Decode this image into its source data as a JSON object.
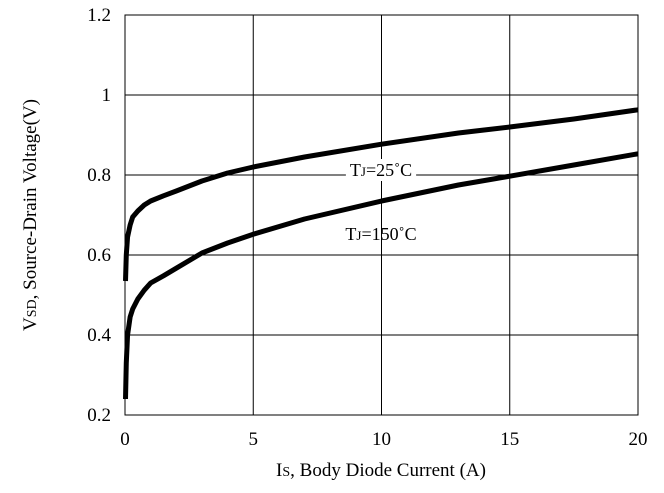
{
  "chart_data": {
    "type": "line",
    "xlabel_parts": {
      "main": "I",
      "sub": "S",
      "rest": ", Body Diode Current (A)"
    },
    "ylabel_parts": {
      "main": "V",
      "sub": "SD",
      "rest": ", Source-Drain Voltage(V)"
    },
    "xlim": [
      0,
      20
    ],
    "ylim": [
      0.2,
      1.2
    ],
    "x_ticks": [
      "0",
      "5",
      "10",
      "15",
      "20"
    ],
    "y_ticks": [
      "0.2",
      "0.4",
      "0.6",
      "0.8",
      "1",
      "1.2"
    ],
    "grid": true,
    "series": [
      {
        "name_parts": {
          "main": "T",
          "sub": "J",
          "rest": "=25˚C"
        },
        "x": [
          0.02,
          0.05,
          0.1,
          0.2,
          0.3,
          0.5,
          0.75,
          1,
          1.5,
          2,
          3,
          4,
          5,
          7,
          10,
          13,
          15,
          17.5,
          20
        ],
        "y": [
          0.535,
          0.6,
          0.645,
          0.675,
          0.695,
          0.71,
          0.725,
          0.735,
          0.748,
          0.76,
          0.785,
          0.805,
          0.82,
          0.845,
          0.877,
          0.905,
          0.92,
          0.94,
          0.963
        ]
      },
      {
        "name_parts": {
          "main": "T",
          "sub": "J",
          "rest": "=150˚C"
        },
        "x": [
          0.02,
          0.05,
          0.1,
          0.2,
          0.3,
          0.5,
          0.75,
          1,
          1.5,
          2,
          3,
          4,
          5,
          7,
          10,
          13,
          15,
          17.5,
          20
        ],
        "y": [
          0.24,
          0.33,
          0.4,
          0.445,
          0.465,
          0.49,
          0.512,
          0.53,
          0.548,
          0.567,
          0.605,
          0.63,
          0.652,
          0.69,
          0.735,
          0.775,
          0.797,
          0.825,
          0.853
        ]
      }
    ]
  }
}
